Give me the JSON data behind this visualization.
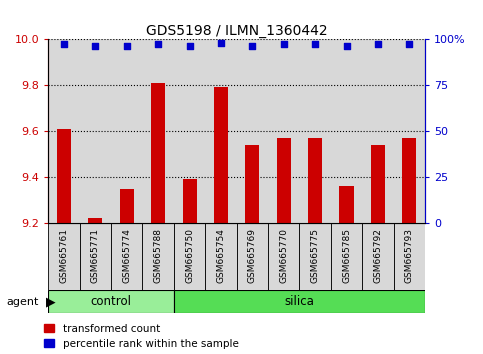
{
  "title": "GDS5198 / ILMN_1360442",
  "samples": [
    "GSM665761",
    "GSM665771",
    "GSM665774",
    "GSM665788",
    "GSM665750",
    "GSM665754",
    "GSM665769",
    "GSM665770",
    "GSM665775",
    "GSM665785",
    "GSM665792",
    "GSM665793"
  ],
  "transformed_counts": [
    9.61,
    9.22,
    9.35,
    9.81,
    9.39,
    9.79,
    9.54,
    9.57,
    9.57,
    9.36,
    9.54,
    9.57
  ],
  "percentile_ranks": [
    97,
    96,
    96,
    97,
    96,
    98,
    96,
    97,
    97,
    96,
    97,
    97
  ],
  "control_count": 4,
  "silica_count": 8,
  "ylim_left": [
    9.2,
    10.0
  ],
  "ylim_right": [
    0,
    100
  ],
  "yticks_left": [
    9.2,
    9.4,
    9.6,
    9.8,
    10.0
  ],
  "yticks_right": [
    0,
    25,
    50,
    75,
    100
  ],
  "bar_color": "#cc0000",
  "dot_color": "#0000cc",
  "control_bg": "#99ee99",
  "silica_bg": "#55dd55",
  "sample_bg": "#d8d8d8",
  "bar_width": 0.45,
  "agent_label": "agent",
  "control_label": "control",
  "silica_label": "silica",
  "legend_red_label": "transformed count",
  "legend_blue_label": "percentile rank within the sample"
}
